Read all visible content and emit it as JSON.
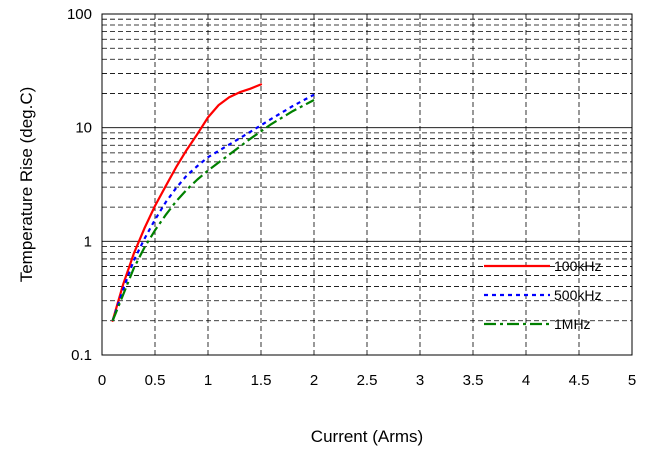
{
  "chart_data": {
    "type": "line",
    "title": "",
    "xlabel": "Current (Arms)",
    "ylabel": "Temperature Rise (deg.C)",
    "xlim": [
      0,
      5
    ],
    "ylim": [
      0.1,
      100
    ],
    "yscale": "log",
    "grid": true,
    "legend_position": "right",
    "x_ticks": [
      0,
      0.5,
      1,
      1.5,
      2,
      2.5,
      3,
      3.5,
      4,
      4.5,
      5
    ],
    "x_tick_labels": [
      "0",
      "0.5",
      "1",
      "1.5",
      "2",
      "2.5",
      "3",
      "3.5",
      "4",
      "4.5",
      "5"
    ],
    "y_ticks": [
      0.1,
      1,
      10,
      100
    ],
    "y_tick_labels": [
      "0.1",
      "1",
      "10",
      "100"
    ],
    "series": [
      {
        "name": "100kHz",
        "color": "#ff0000",
        "style": "solid",
        "x": [
          0.1,
          0.2,
          0.3,
          0.4,
          0.5,
          0.6,
          0.7,
          0.8,
          0.9,
          1.0,
          1.1,
          1.2,
          1.3,
          1.4,
          1.5
        ],
        "y": [
          0.2,
          0.42,
          0.78,
          1.3,
          2.05,
          3.05,
          4.5,
          6.4,
          8.8,
          12.3,
          15.8,
          18.5,
          20.5,
          22.0,
          24.0
        ]
      },
      {
        "name": "500kHz",
        "color": "#0000ff",
        "style": "dotted",
        "x": [
          0.1,
          0.2,
          0.3,
          0.4,
          0.5,
          0.6,
          0.7,
          0.8,
          0.9,
          1.0,
          1.2,
          1.4,
          1.6,
          1.8,
          2.0
        ],
        "y": [
          0.2,
          0.38,
          0.68,
          1.05,
          1.55,
          2.2,
          2.95,
          3.8,
          4.6,
          5.5,
          7.1,
          9.2,
          12.0,
          15.5,
          19.5
        ]
      },
      {
        "name": "1MHz",
        "color": "#008000",
        "style": "dash-dot",
        "x": [
          0.1,
          0.2,
          0.3,
          0.4,
          0.5,
          0.6,
          0.7,
          0.8,
          0.9,
          1.0,
          1.2,
          1.4,
          1.6,
          1.8,
          2.0
        ],
        "y": [
          0.2,
          0.34,
          0.58,
          0.88,
          1.25,
          1.7,
          2.25,
          2.85,
          3.5,
          4.2,
          5.8,
          8.0,
          10.8,
          14.0,
          17.5
        ]
      }
    ]
  }
}
